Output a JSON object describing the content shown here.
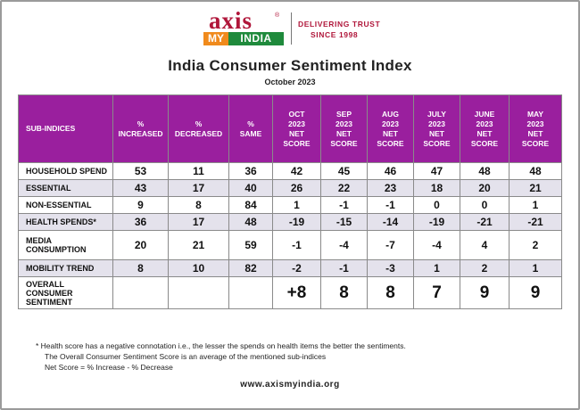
{
  "logo": {
    "axis": "axis",
    "reg": "®",
    "my": "MY",
    "india": "INDIA",
    "tagline": "DELIVERING TRUST",
    "since": "SINCE 1998"
  },
  "title": "India Consumer Sentiment Index",
  "subtitle": "October  2023",
  "table": {
    "headers": [
      "SUB-INDICES",
      "%\nINCREASED",
      "%\nDECREASED",
      "%\nSAME",
      "OCT\n2023\nNET\nSCORE",
      "SEP\n2023\nNET\nSCORE",
      "AUG\n2023\nNET\nSCORE",
      "JULY\n2023\nNET\nSCORE",
      "JUNE\n2023\nNET\nSCORE",
      "MAY\n2023\nNET\nSCORE"
    ],
    "rows": [
      [
        "HOUSEHOLD SPEND",
        "53",
        "11",
        "36",
        "42",
        "45",
        "46",
        "47",
        "48",
        "48"
      ],
      [
        "ESSENTIAL",
        "43",
        "17",
        "40",
        "26",
        "22",
        "23",
        "18",
        "20",
        "21"
      ],
      [
        "NON-ESSENTIAL",
        "9",
        "8",
        "84",
        "1",
        "-1",
        "-1",
        "0",
        "0",
        "1"
      ],
      [
        "HEALTH SPENDS*",
        "36",
        "17",
        "48",
        "-19",
        "-15",
        "-14",
        "-19",
        "-21",
        "-21"
      ],
      [
        "MEDIA\nCONSUMPTION",
        "20",
        "21",
        "59",
        "-1",
        "-4",
        "-7",
        "-4",
        "4",
        "2"
      ],
      [
        "MOBILITY TREND",
        "8",
        "10",
        "82",
        "-2",
        "-1",
        "-3",
        "1",
        "2",
        "1"
      ]
    ],
    "overall": [
      "OVERALL CONSUMER\nSENTIMENT",
      "",
      "",
      "",
      "+8",
      "8",
      "8",
      "7",
      "9",
      "9"
    ]
  },
  "notes": {
    "n1": "*  Health score has a negative connotation i.e., the lesser the spends on health items the better the sentiments.",
    "n2": "The Overall Consumer Sentiment Score is an average of the mentioned sub-indices",
    "n3": "Net Score = % Increase  - % Decrease"
  },
  "footer": "www.axismyindia.org",
  "colors": {
    "header_bg": "#9a1f9e",
    "row_alt": "#e4e2ec",
    "brand_red": "#b0163a",
    "brand_orange": "#f08a1c",
    "brand_green": "#1f8a3c"
  }
}
